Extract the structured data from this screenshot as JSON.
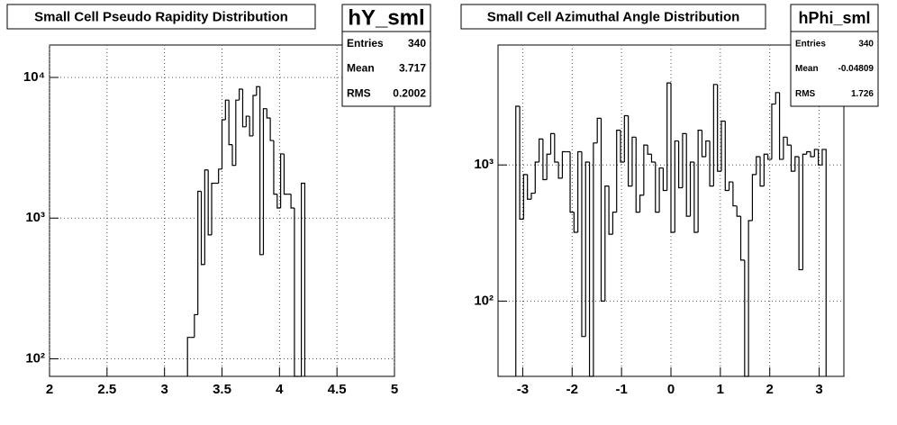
{
  "chart_data": [
    {
      "type": "histogram",
      "title": "Small Cell Pseudo Rapidity Distribution",
      "stats_title": "hY_sml",
      "stats": [
        {
          "label": "Entries",
          "value": 340
        },
        {
          "label": "Mean",
          "value": 3.717
        },
        {
          "label": "RMS",
          "value": 0.2002
        }
      ],
      "bins": [
        3.2,
        3.23,
        3.26,
        3.29,
        3.32,
        3.35,
        3.38,
        3.41,
        3.44,
        3.47,
        3.5,
        3.53,
        3.56,
        3.59,
        3.62,
        3.65,
        3.68,
        3.71,
        3.74,
        3.77,
        3.8,
        3.83,
        3.86,
        3.89,
        3.92,
        3.95,
        3.98,
        4.01,
        4.04,
        4.07,
        4.1,
        4.13,
        4.16,
        4.19,
        4.22
      ],
      "values": [
        142,
        142,
        206,
        1550,
        468,
        2200,
        760,
        1770,
        1770,
        2230,
        5000,
        6900,
        3330,
        2370,
        6900,
        8260,
        4460,
        5300,
        3840,
        7450,
        8600,
        550,
        6000,
        5150,
        3560,
        1480,
        1180,
        2860,
        1480,
        1480,
        1180,
        0,
        0,
        1770
      ],
      "color": "#000000",
      "xlim": [
        2,
        5
      ],
      "xticks": [
        2,
        2.5,
        3,
        3.5,
        4,
        4.5,
        5
      ],
      "ylim": [
        75,
        17000
      ],
      "log_y": true,
      "yticks": [
        {
          "value": 100,
          "label": "10²"
        },
        {
          "value": 1000,
          "label": "10³"
        },
        {
          "value": 10000,
          "label": "10⁴"
        }
      ],
      "grid": true
    },
    {
      "type": "histogram",
      "title": "Small Cell Azimuthal Angle Distribution",
      "stats_title": "hPhi_sml",
      "stats": [
        {
          "label": "Entries",
          "value": 340
        },
        {
          "label": "Mean",
          "value": -0.04809
        },
        {
          "label": "RMS",
          "value": 1.726
        }
      ],
      "bins": [
        -3.14,
        -3.0615,
        -2.983,
        -2.9045,
        -2.826,
        -2.7475,
        -2.669,
        -2.5905,
        -2.512,
        -2.4335,
        -2.355,
        -2.2765,
        -2.198,
        -2.1195,
        -2.041,
        -1.9625,
        -1.884,
        -1.8055,
        -1.727,
        -1.6485,
        -1.57,
        -1.4915,
        -1.413,
        -1.3345,
        -1.256,
        -1.1775,
        -1.099,
        -1.0205,
        -0.942,
        -0.8635,
        -0.785,
        -0.7065,
        -0.628,
        -0.5495,
        -0.471,
        -0.3925,
        -0.314,
        -0.2355,
        -0.157,
        -0.0785,
        0,
        0.0785,
        0.157,
        0.2355,
        0.314,
        0.3925,
        0.471,
        0.5495,
        0.628,
        0.7065,
        0.785,
        0.8635,
        0.942,
        1.0205,
        1.099,
        1.1775,
        1.256,
        1.3345,
        1.413,
        1.4915,
        1.57,
        1.6485,
        1.727,
        1.8055,
        1.884,
        1.9625,
        2.041,
        2.1195,
        2.198,
        2.2765,
        2.355,
        2.4335,
        2.512,
        2.5905,
        2.669,
        2.7475,
        2.826,
        2.9045,
        2.983,
        3.0615,
        3.14
      ],
      "values": [
        2700,
        400,
        850,
        560,
        620,
        1050,
        1550,
        780,
        1200,
        1700,
        1050,
        800,
        1250,
        1250,
        450,
        320,
        1250,
        55,
        1050,
        0,
        1450,
        2200,
        100,
        700,
        310,
        450,
        1800,
        1050,
        2300,
        700,
        1600,
        450,
        600,
        1400,
        1200,
        1050,
        450,
        950,
        650,
        4000,
        320,
        1500,
        680,
        1700,
        420,
        1050,
        320,
        1800,
        1150,
        1500,
        700,
        3900,
        900,
        2100,
        650,
        750,
        500,
        420,
        200,
        0,
        390,
        850,
        1150,
        700,
        1200,
        1100,
        2800,
        3400,
        1100,
        1600,
        1400,
        900,
        1150,
        170,
        1200,
        1250,
        1150,
        1300,
        1000,
        1300
      ],
      "color": "#000000",
      "xlim": [
        -3.5,
        3.5
      ],
      "xticks": [
        -3,
        -2,
        -1,
        0,
        1,
        2,
        3
      ],
      "ylim": [
        28,
        7600
      ],
      "log_y": true,
      "yticks": [
        {
          "value": 100,
          "label": "10²"
        },
        {
          "value": 1000,
          "label": "10³"
        }
      ],
      "grid": true
    }
  ]
}
